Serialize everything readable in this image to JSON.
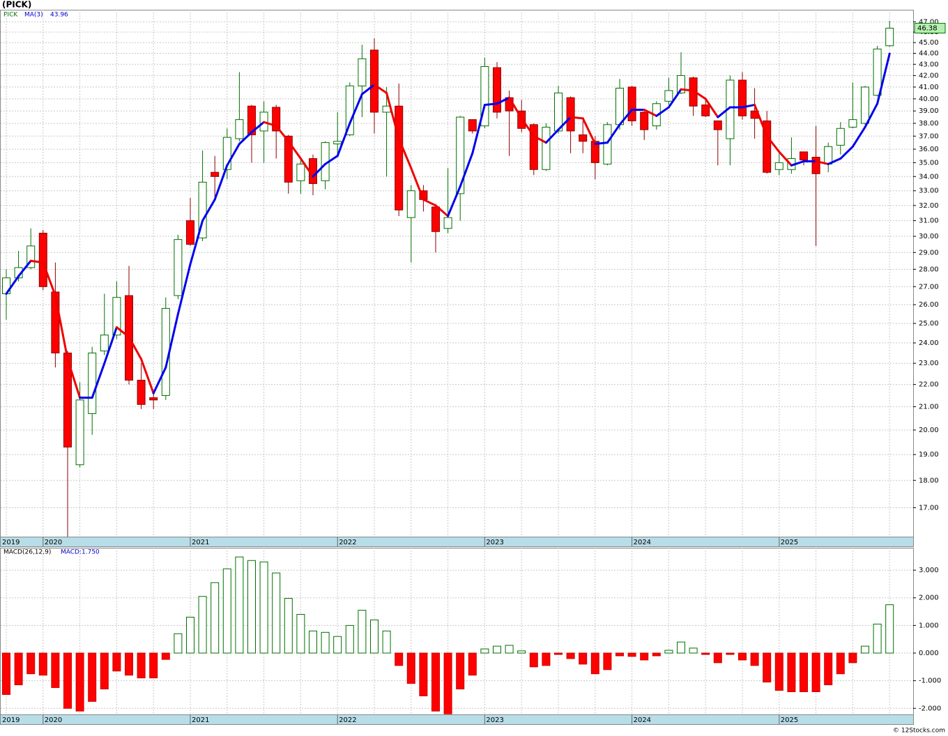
{
  "chart_data": [
    {
      "type": "candlestick",
      "title": "(PICK)",
      "symbol": "PICK",
      "categories": [
        "2019",
        null,
        null,
        "2020",
        null,
        null,
        null,
        null,
        null,
        null,
        null,
        null,
        null,
        null,
        null,
        "2021",
        null,
        null,
        null,
        null,
        null,
        null,
        null,
        null,
        null,
        null,
        null,
        "2022",
        null,
        null,
        null,
        null,
        null,
        null,
        null,
        null,
        null,
        null,
        null,
        "2023",
        null,
        null,
        null,
        null,
        null,
        null,
        null,
        null,
        null,
        null,
        null,
        "2024",
        null,
        null,
        null,
        null,
        null,
        null,
        null,
        null,
        null,
        null,
        null,
        "2025",
        null,
        null,
        null,
        null,
        null,
        null,
        null,
        null,
        null
      ],
      "open": [
        26.6,
        27.5,
        28.1,
        30.2,
        26.7,
        23.5,
        18.6,
        20.7,
        23.6,
        24.4,
        26.5,
        22.2,
        21.4,
        21.5,
        26.5,
        31.0,
        29.9,
        34.3,
        34.5,
        36.8,
        39.4,
        37.4,
        39.3,
        37.0,
        33.7,
        35.3,
        33.7,
        36.4,
        37.1,
        41.1,
        44.3,
        38.9,
        39.4,
        31.2,
        33.0,
        31.9,
        30.5,
        32.8,
        38.3,
        37.8,
        42.7,
        40.1,
        39.0,
        37.9,
        34.5,
        37.4,
        40.1,
        37.1,
        36.6,
        34.9,
        37.9,
        41.0,
        38.9,
        37.8,
        39.8,
        40.5,
        41.8,
        39.5,
        38.2,
        36.8,
        41.6,
        39.0,
        38.2,
        34.5,
        34.5,
        35.8,
        35.4,
        34.9,
        36.3,
        37.7,
        38.0,
        40.3,
        44.7
      ],
      "high": [
        28.0,
        29.1,
        30.5,
        30.4,
        28.4,
        23.6,
        22.1,
        23.8,
        26.6,
        27.3,
        28.2,
        23.0,
        21.6,
        26.4,
        30.1,
        32.5,
        35.9,
        35.5,
        37.6,
        42.3,
        39.5,
        39.8,
        39.5,
        37.1,
        35.4,
        35.6,
        36.6,
        38.9,
        41.4,
        44.8,
        45.4,
        41.0,
        41.3,
        33.4,
        33.4,
        32.1,
        34.6,
        38.6,
        38.3,
        43.6,
        43.2,
        40.7,
        39.9,
        38.0,
        38.0,
        41.1,
        40.2,
        38.2,
        37.0,
        38.1,
        41.7,
        41.1,
        39.0,
        39.8,
        41.8,
        44.1,
        41.9,
        40.0,
        38.2,
        42.0,
        42.3,
        40.9,
        39.0,
        35.8,
        36.9,
        35.8,
        37.8,
        36.5,
        38.1,
        41.4,
        41.1,
        44.7,
        47.1
      ],
      "low": [
        25.2,
        27.3,
        28.0,
        26.8,
        22.8,
        16.0,
        18.5,
        19.8,
        23.4,
        24.2,
        22.0,
        20.9,
        20.9,
        21.3,
        26.3,
        29.4,
        29.7,
        32.3,
        33.8,
        36.6,
        35.0,
        35.0,
        35.3,
        32.8,
        32.8,
        32.7,
        33.1,
        35.5,
        37.0,
        38.5,
        37.2,
        34.0,
        31.3,
        28.4,
        31.6,
        29.0,
        30.2,
        31.0,
        37.2,
        37.6,
        38.4,
        35.5,
        37.3,
        34.1,
        34.4,
        37.2,
        35.7,
        35.7,
        33.8,
        34.8,
        37.5,
        37.8,
        36.7,
        37.5,
        39.5,
        40.4,
        38.6,
        38.5,
        34.8,
        34.8,
        38.3,
        36.8,
        34.2,
        34.1,
        34.2,
        34.8,
        29.4,
        34.3,
        35.6,
        37.6,
        37.9,
        40.2,
        44.6
      ],
      "close": [
        27.5,
        28.1,
        29.4,
        27.0,
        23.5,
        19.3,
        21.3,
        23.5,
        24.4,
        26.4,
        22.2,
        21.1,
        21.3,
        25.8,
        29.8,
        29.5,
        33.6,
        34.0,
        36.9,
        38.3,
        37.1,
        38.9,
        37.4,
        33.6,
        34.9,
        33.5,
        36.5,
        36.6,
        41.1,
        43.5,
        38.9,
        39.4,
        31.7,
        33.0,
        32.4,
        30.3,
        31.2,
        38.5,
        37.4,
        42.8,
        38.9,
        39.0,
        37.6,
        34.5,
        37.7,
        40.5,
        37.4,
        36.6,
        35.0,
        37.9,
        40.9,
        38.2,
        37.5,
        39.6,
        40.7,
        42.0,
        39.4,
        38.6,
        37.5,
        41.6,
        38.6,
        38.4,
        34.3,
        35.0,
        35.3,
        35.2,
        34.2,
        36.2,
        37.6,
        38.3,
        41.0,
        44.4,
        46.38
      ],
      "ma": {
        "name": "MA(3)",
        "up_color": "#0000ee",
        "down_color": "#ee0000",
        "values": [
          26.6,
          27.6,
          28.5,
          28.4,
          26.5,
          23.2,
          21.4,
          21.4,
          23.0,
          24.8,
          24.3,
          23.2,
          21.6,
          22.8,
          25.5,
          28.3,
          31.0,
          32.4,
          34.8,
          36.4,
          37.3,
          38.1,
          37.8,
          36.6,
          35.3,
          34.0,
          34.9,
          35.5,
          38.0,
          40.4,
          41.2,
          40.5,
          36.8,
          34.6,
          32.4,
          32.0,
          31.3,
          33.3,
          35.7,
          39.5,
          39.6,
          40.1,
          38.4,
          37.0,
          36.5,
          37.5,
          38.5,
          38.4,
          36.4,
          36.5,
          37.9,
          39.1,
          39.1,
          38.6,
          39.3,
          40.8,
          40.7,
          40.0,
          38.5,
          39.3,
          39.3,
          39.5,
          37.0,
          35.8,
          34.8,
          35.1,
          35.1,
          34.9,
          35.3,
          36.2,
          37.7,
          39.6,
          43.96
        ]
      },
      "up_color": "#007000",
      "down_color": "#ff0000",
      "log_scale": true,
      "grid": true,
      "ylim": [
        16.0,
        48.2
      ],
      "yticks": [
        {
          "value": 17,
          "label": "17.00"
        },
        {
          "value": 18,
          "label": "18.00"
        },
        {
          "value": 19,
          "label": "19.00"
        },
        {
          "value": 20,
          "label": "20.00"
        },
        {
          "value": 21,
          "label": "21.00"
        },
        {
          "value": 22,
          "label": "22.00"
        },
        {
          "value": 23,
          "label": "23.00"
        },
        {
          "value": 24,
          "label": "24.00"
        },
        {
          "value": 25,
          "label": "25.00"
        },
        {
          "value": 26,
          "label": "26.00"
        },
        {
          "value": 27,
          "label": "27.00"
        },
        {
          "value": 28,
          "label": "28.00"
        },
        {
          "value": 29,
          "label": "29.00"
        },
        {
          "value": 30,
          "label": "30.00"
        },
        {
          "value": 31,
          "label": "31.00"
        },
        {
          "value": 32,
          "label": "32.00"
        },
        {
          "value": 33,
          "label": "33.00"
        },
        {
          "value": 34,
          "label": "34.00"
        },
        {
          "value": 35,
          "label": "35.00"
        },
        {
          "value": 36,
          "label": "36.00"
        },
        {
          "value": 37,
          "label": "37.00"
        },
        {
          "value": 38,
          "label": "38.00"
        },
        {
          "value": 39,
          "label": "39.00"
        },
        {
          "value": 40,
          "label": "40.00"
        },
        {
          "value": 41,
          "label": "41.00"
        },
        {
          "value": 42,
          "label": "42.00"
        },
        {
          "value": 43,
          "label": "43.00"
        },
        {
          "value": 44,
          "label": "44.00"
        },
        {
          "value": 45,
          "label": "45.00"
        },
        {
          "value": 46,
          "label": "46.00"
        },
        {
          "value": 47,
          "label": "47.00"
        }
      ]
    },
    {
      "type": "bar",
      "title": "MACD(26,12,9)",
      "legend": "MACD:1.750",
      "values": [
        -1.5,
        -1.15,
        -0.75,
        -0.8,
        -1.25,
        -2.0,
        -2.1,
        -1.75,
        -1.3,
        -0.65,
        -0.8,
        -0.9,
        -0.9,
        -0.23,
        0.7,
        1.3,
        2.05,
        2.55,
        3.05,
        3.48,
        3.35,
        3.3,
        2.9,
        1.98,
        1.4,
        0.8,
        0.75,
        0.6,
        1.0,
        1.55,
        1.2,
        0.8,
        -0.45,
        -1.1,
        -1.55,
        -2.1,
        -2.2,
        -1.3,
        -0.8,
        0.15,
        0.25,
        0.28,
        0.08,
        -0.5,
        -0.45,
        -0.05,
        -0.2,
        -0.4,
        -0.75,
        -0.6,
        -0.1,
        -0.12,
        -0.25,
        -0.1,
        0.1,
        0.4,
        0.18,
        -0.05,
        -0.35,
        -0.05,
        -0.25,
        -0.45,
        -1.05,
        -1.35,
        -1.4,
        -1.4,
        -1.4,
        -1.15,
        -0.75,
        -0.35,
        0.25,
        1.05,
        1.75
      ],
      "up_color": "#007000",
      "down_color": "#ff0000",
      "ylim": [
        -2.22,
        3.81
      ],
      "yticks": [
        {
          "value": -2,
          "label": "-2.000"
        },
        {
          "value": -1,
          "label": "-1.000"
        },
        {
          "value": 0,
          "label": "0.000"
        },
        {
          "value": 1,
          "label": "1.000"
        },
        {
          "value": 2,
          "label": "2.000"
        },
        {
          "value": 3,
          "label": "3.000"
        }
      ]
    }
  ],
  "footer": "© 12Stocks.com"
}
